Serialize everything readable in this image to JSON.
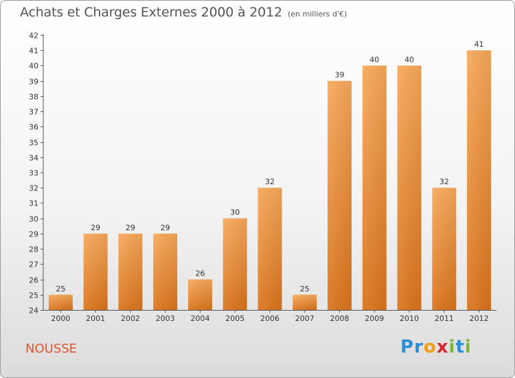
{
  "header": {
    "title": "Achats et Charges Externes 2000 à 2012",
    "subtitle": "(en milliers d'€)"
  },
  "footer": {
    "commune": "NOUSSE",
    "logo": {
      "letters": [
        "P",
        "r",
        "o",
        "x",
        "i",
        "t",
        "i"
      ],
      "colors": [
        "#2a8fd6",
        "#2a8fd6",
        "#f0a11a",
        "#d7262b",
        "#7ab833",
        "#2a8fd6",
        "#7ab833"
      ]
    }
  },
  "chart_data": {
    "type": "bar",
    "categories": [
      "2000",
      "2001",
      "2002",
      "2003",
      "2004",
      "2005",
      "2006",
      "2007",
      "2008",
      "2009",
      "2010",
      "2011",
      "2012"
    ],
    "values": [
      25,
      29,
      29,
      29,
      26,
      30,
      32,
      25,
      39,
      40,
      40,
      32,
      41
    ],
    "title": "Achats et Charges Externes 2000 à 2012",
    "ylim": [
      24,
      42
    ],
    "yticks": [
      24,
      25,
      26,
      27,
      28,
      29,
      30,
      31,
      32,
      33,
      34,
      35,
      36,
      37,
      38,
      39,
      40,
      41,
      42
    ],
    "grid": false,
    "bar_color": "#f28c30"
  }
}
